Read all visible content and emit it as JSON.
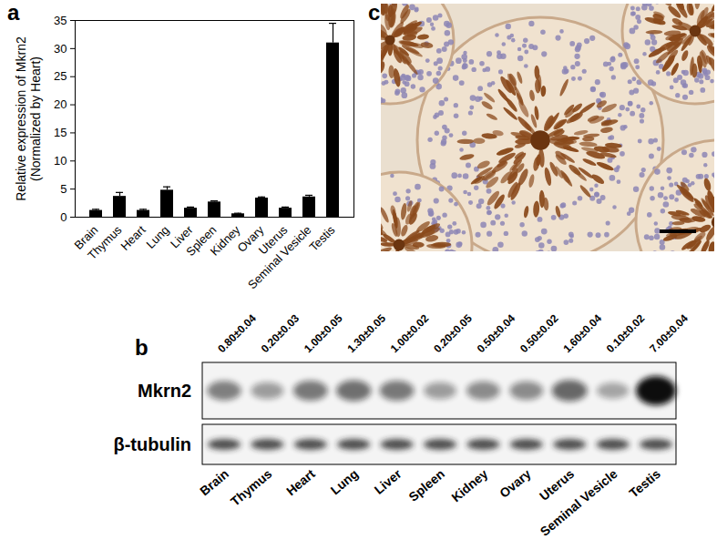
{
  "chart_data": {
    "type": "bar",
    "panel": "a",
    "y_label": [
      "Relative expression of Mkrn2",
      "(Normalized by Heart)"
    ],
    "categories": [
      "Brain",
      "Thymus",
      "Heart",
      "Lung",
      "Liver",
      "Spleen",
      "Kidney",
      "Ovary",
      "Uterus",
      "Seminal Vesicle",
      "Testis"
    ],
    "values": [
      1.2,
      3.7,
      1.2,
      4.8,
      1.6,
      2.7,
      0.6,
      3.4,
      1.6,
      3.6,
      31
    ],
    "errors": [
      0.2,
      0.7,
      0.2,
      0.6,
      0.2,
      0.2,
      0.1,
      0.2,
      0.2,
      0.3,
      3.5
    ],
    "color": "#000000",
    "ylim": [
      0,
      35
    ],
    "yticks": [
      0,
      5,
      10,
      15,
      20,
      25,
      30,
      35
    ]
  },
  "blot": {
    "panel": "b",
    "rows": [
      "Mkrn2",
      "β-tubulin"
    ],
    "lanes": [
      "Brain",
      "Thymus",
      "Heart",
      "Lung",
      "Liver",
      "Spleen",
      "Kidney",
      "Ovary",
      "Uterus",
      "Seminal Vesicle",
      "Testis"
    ],
    "values": [
      0.8,
      0.2,
      1.0,
      1.3,
      1.0,
      0.2,
      0.5,
      0.5,
      1.6,
      0.1,
      7.0
    ],
    "errors": [
      0.04,
      0.03,
      0.05,
      0.05,
      0.02,
      0.05,
      0.04,
      0.02,
      0.04,
      0.02,
      0.04
    ],
    "value_labels": [
      "0.80±0.04",
      "0.20±0.03",
      "1.00±0.05",
      "1.30±0.05",
      "1.00±0.02",
      "0.20±0.05",
      "0.50±0.04",
      "0.50±0.02",
      "1.60±0.04",
      "0.10±0.02",
      "7.00±0.04"
    ]
  },
  "histology": {
    "panel": "c"
  }
}
